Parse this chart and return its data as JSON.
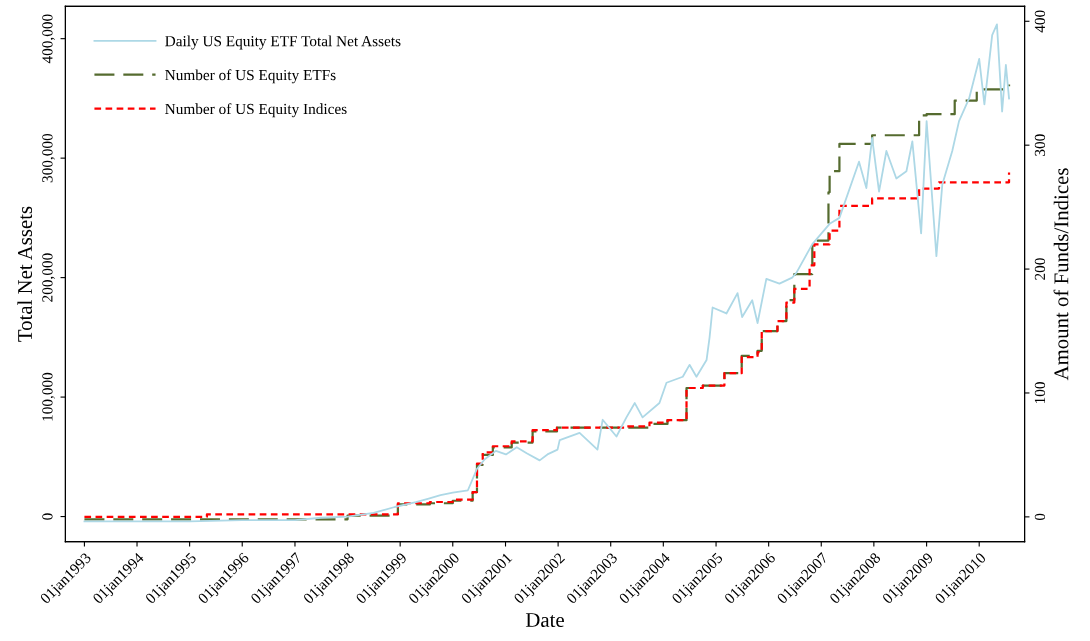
{
  "chart_data": {
    "type": "line",
    "xlabel": "Date",
    "ylabel": "Total Net Assets",
    "y2label": "Amount of Funds/Indices",
    "xlim": [
      "1992-08-22",
      "2010-11-12"
    ],
    "xticks": [
      {
        "value": "1993-01-01",
        "label": "01jan1993"
      },
      {
        "value": "1994-01-01",
        "label": "01jan1994"
      },
      {
        "value": "1995-01-01",
        "label": "01jan1995"
      },
      {
        "value": "1996-01-01",
        "label": "01jan1996"
      },
      {
        "value": "1997-01-01",
        "label": "01jan1997"
      },
      {
        "value": "1998-01-01",
        "label": "01jan1998"
      },
      {
        "value": "1999-01-01",
        "label": "01jan1999"
      },
      {
        "value": "2000-01-01",
        "label": "01jan2000"
      },
      {
        "value": "2001-01-01",
        "label": "01jan2001"
      },
      {
        "value": "2002-01-01",
        "label": "01jan2002"
      },
      {
        "value": "2003-01-01",
        "label": "01jan2003"
      },
      {
        "value": "2004-01-01",
        "label": "01jan2004"
      },
      {
        "value": "2005-01-01",
        "label": "01jan2005"
      },
      {
        "value": "2006-01-01",
        "label": "01jan2006"
      },
      {
        "value": "2007-01-01",
        "label": "01jan2007"
      },
      {
        "value": "2008-01-01",
        "label": "01jan2008"
      },
      {
        "value": "2009-01-01",
        "label": "01jan2009"
      },
      {
        "value": "2010-01-01",
        "label": "01jan2010"
      }
    ],
    "ylim": [
      -21000,
      427000
    ],
    "yticks": [
      0,
      {
        "value": 100000,
        "label": "100,000"
      },
      {
        "value": 200000,
        "label": "200,000"
      },
      {
        "value": 300000,
        "label": "300,000"
      },
      {
        "value": 400000,
        "label": "400,000"
      }
    ],
    "y2lim": [
      -20,
      412
    ],
    "y2ticks": [
      0,
      100,
      200,
      300,
      400
    ],
    "grid": false,
    "legend": "top left",
    "series": [
      {
        "name": "Daily US Equity ETF Total Net Assets",
        "color": "#add8e6",
        "line_style": "solid",
        "x": [
          "1993-01-01",
          "1995-01-01",
          "1996-01-01",
          "1997-01-01",
          "1997-07-01",
          "1998-01-01",
          "1998-07-01",
          "1998-11-24",
          "1999-04-20",
          "1999-07-18",
          "1999-10-08",
          "2000-01-01",
          "2000-04-15",
          "2000-06-17",
          "2000-08-10",
          "2000-10-26",
          "2001-01-04",
          "2001-03-20",
          "2001-05-28",
          "2001-08-26",
          "2001-10-19",
          "2001-12-28",
          "2002-01-12",
          "2002-05-30",
          "2002-10-01",
          "2002-11-06",
          "2003-02-10",
          "2003-04-20",
          "2003-06-17",
          "2003-08-10",
          "2003-12-05",
          "2004-01-23",
          "2004-05-15",
          "2004-07-01",
          "2004-08-18",
          "2004-10-27",
          "2004-11-17",
          "2004-12-08",
          "2005-03-14",
          "2005-05-30",
          "2005-07-01",
          "2005-09-09",
          "2005-10-16",
          "2005-12-16",
          "2006-03-17",
          "2006-06-13",
          "2006-07-12",
          "2006-10-31",
          "2007-02-28",
          "2007-05-07",
          "2007-09-20",
          "2007-11-10",
          "2007-12-20",
          "2008-02-06",
          "2008-03-28",
          "2008-06-05",
          "2008-08-14",
          "2008-09-24",
          "2008-11-24",
          "2009-01-01",
          "2009-03-10",
          "2009-04-20",
          "2009-06-28",
          "2009-08-14",
          "2009-10-23",
          "2010-01-01",
          "2010-02-06",
          "2010-04-01",
          "2010-05-04",
          "2010-06-09",
          "2010-07-05",
          "2010-07-27"
        ],
        "values": [
          -4000,
          -4000,
          -3000,
          -3000,
          -1000,
          0,
          3000,
          8000,
          12000,
          15000,
          18000,
          20000,
          22000,
          40000,
          48000,
          55000,
          52000,
          58000,
          53000,
          47000,
          52000,
          56000,
          64000,
          70000,
          56000,
          81000,
          67000,
          83000,
          95000,
          83000,
          95000,
          112000,
          117000,
          127000,
          117000,
          131000,
          150000,
          175000,
          170000,
          187000,
          167000,
          181000,
          162000,
          199000,
          195000,
          200000,
          204000,
          228000,
          245000,
          250000,
          297000,
          275000,
          317000,
          272000,
          306000,
          283000,
          289000,
          314000,
          237000,
          331000,
          218000,
          278000,
          306000,
          331000,
          350000,
          383000,
          345000,
          403000,
          412000,
          339000,
          378000,
          350000
        ]
      },
      {
        "name": "Number of US Equity ETFs",
        "type": "step",
        "axis": "y2",
        "color": "#556b2f",
        "line_style": "dashed",
        "x": [
          "1993-01-01",
          "1998-01-01",
          "1998-12-16",
          "1999-07-26",
          "2000-01-01",
          "2000-05-18",
          "2000-06-17",
          "2000-07-27",
          "2000-10-05",
          "2001-02-13",
          "2001-07-08",
          "2001-12-24",
          "2003-09-27",
          "2004-01-30",
          "2004-06-10",
          "2004-10-01",
          "2005-02-28",
          "2005-06-28",
          "2005-10-16",
          "2005-11-14",
          "2006-03-03",
          "2006-05-04",
          "2006-06-28",
          "2006-10-31",
          "2007-02-20",
          "2007-02-28",
          "2007-05-07",
          "2007-12-20",
          "2008-11-10",
          "2009-01-01",
          "2009-07-15",
          "2009-12-15",
          "2010-07-27"
        ],
        "values": [
          -2,
          1,
          10,
          11,
          13,
          20,
          42,
          50,
          56,
          60,
          69,
          72,
          75,
          78,
          104,
          106,
          116,
          130,
          134,
          150,
          158,
          175,
          196,
          223,
          262,
          279,
          301,
          308,
          324,
          325,
          336,
          345,
          349
        ]
      },
      {
        "name": "Number of US Equity Indices",
        "type": "step",
        "axis": "y2",
        "color": "#ff0000",
        "line_style": "dotted",
        "x": [
          "1993-01-01",
          "1995-05-01",
          "1998-12-16",
          "1999-07-26",
          "2000-01-01",
          "2000-05-18",
          "2000-06-17",
          "2000-07-27",
          "2000-10-05",
          "2001-02-13",
          "2001-07-08",
          "2001-12-24",
          "2003-04-20",
          "2003-09-27",
          "2004-01-30",
          "2004-06-10",
          "2004-10-01",
          "2005-02-28",
          "2005-06-28",
          "2005-10-16",
          "2005-11-14",
          "2006-03-03",
          "2006-05-04",
          "2006-06-28",
          "2006-10-12",
          "2006-11-14",
          "2007-02-28",
          "2007-05-07",
          "2007-12-20",
          "2008-11-10",
          "2009-03-28",
          "2010-07-27"
        ],
        "values": [
          0,
          2,
          11,
          12,
          14,
          20,
          43,
          52,
          57,
          61,
          70,
          72,
          73,
          76,
          78,
          104,
          106,
          116,
          129,
          133,
          150,
          158,
          173,
          184,
          203,
          220,
          231,
          251,
          257,
          265,
          270,
          278
        ]
      }
    ]
  }
}
